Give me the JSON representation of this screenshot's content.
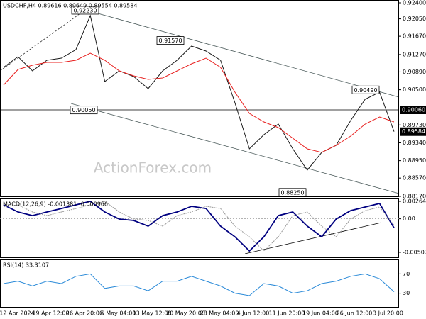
{
  "chart_data": [
    {
      "type": "line",
      "title": "USDCHF,H4  0.89616 0.89649 0.89554 0.89584",
      "watermark": "ActionForex.com",
      "ylim": [
        0.88154,
        0.92462
      ],
      "yticks": [
        {
          "value": 0.924,
          "label": "0.92400"
        },
        {
          "value": 0.9205,
          "label": "0.92050"
        },
        {
          "value": 0.9167,
          "label": "0.91670"
        },
        {
          "value": 0.9127,
          "label": "0.91270"
        },
        {
          "value": 0.9089,
          "label": "0.90890"
        },
        {
          "value": 0.905,
          "label": "0.90500"
        },
        {
          "value": 0.8973,
          "label": "0.89730"
        },
        {
          "value": 0.8934,
          "label": "0.89340"
        },
        {
          "value": 0.8895,
          "label": "0.88950"
        },
        {
          "value": 0.8857,
          "label": "0.88570"
        },
        {
          "value": 0.8817,
          "label": "0.88170"
        }
      ],
      "series": [
        {
          "name": "Close",
          "color": "#1a1a1a",
          "values": [
            0.9099,
            0.91222,
            0.90912,
            0.91145,
            0.91191,
            0.91377,
            0.92121,
            0.9068,
            0.90912,
            0.90788,
            0.90525,
            0.90912,
            0.91145,
            0.91455,
            0.91346,
            0.91145,
            0.90215,
            0.89208,
            0.89518,
            0.8975,
            0.89208,
            0.88743,
            0.8913,
            0.89285,
            0.89827,
            0.90292,
            0.90447,
            0.89584
          ]
        },
        {
          "name": "MA",
          "color": "#e8201f",
          "values": [
            0.90602,
            0.90943,
            0.91036,
            0.91098,
            0.91098,
            0.91145,
            0.913,
            0.91145,
            0.90912,
            0.90804,
            0.90726,
            0.90757,
            0.90912,
            0.91067,
            0.91191,
            0.9099,
            0.90447,
            0.89982,
            0.89797,
            0.89673,
            0.8944,
            0.89208,
            0.8913,
            0.89285,
            0.89487,
            0.8975,
            0.89905,
            0.89797
          ]
        }
      ],
      "level": {
        "value": 0.9006,
        "label": "0.90060"
      },
      "last": {
        "value": 0.89584,
        "label": "0.89584"
      },
      "annotations": [
        {
          "value": 0.9223,
          "label": "0.92230"
        },
        {
          "value": 0.9157,
          "label": "0.91570"
        },
        {
          "value": 0.9005,
          "label": "0.90050"
        },
        {
          "value": 0.9049,
          "label": "0.90490"
        },
        {
          "value": 0.8825,
          "label": "0.88250"
        }
      ]
    },
    {
      "type": "line",
      "title": "MACD(12,26,9) -0.001381 -0.000966",
      "ylim": [
        -0.00594,
        0.00307
      ],
      "yticks": [
        {
          "value": 0.00264,
          "label": "0.00264"
        },
        {
          "value": 0,
          "label": "0.00"
        },
        {
          "value": -0.005077,
          "label": "-0.005077"
        }
      ],
      "levels": [
        0
      ],
      "series": [
        {
          "name": "MACD",
          "color": "#000080",
          "values": [
            0.0021,
            0.00103,
            0.00049,
            0.00103,
            0.00156,
            0.0021,
            0.00264,
            0.00103,
            -4e-05,
            -0.00026,
            -0.00111,
            0.00049,
            0.00103,
            0.00189,
            0.00156,
            -0.00111,
            -0.00272,
            -0.00487,
            -0.00272,
            0.00049,
            0.00103,
            -0.00111,
            -0.00272,
            -4e-05,
            0.00124,
            0.00178,
            0.00232,
            -0.00138
          ]
        },
        {
          "name": "Signal",
          "color": "#9a9a9a",
          "values": [
            0.0018,
            0.0021,
            0.00103,
            0.00049,
            0.00103,
            0.00156,
            0.0021,
            0.00264,
            0.00103,
            -4e-05,
            -0.00026,
            -0.00111,
            0.00049,
            0.00103,
            0.00189,
            0.00156,
            -0.00111,
            -0.00272,
            -0.00487,
            -0.00272,
            0.00049,
            0.00103,
            -0.00111,
            -0.00272,
            -4e-05,
            0.00124,
            0.00178,
            -0.00097
          ]
        }
      ]
    },
    {
      "type": "line",
      "title": "RSI(14) 33.3107",
      "ylim": [
        0,
        100
      ],
      "yticks": [
        70,
        30
      ],
      "levels": [
        70,
        30
      ],
      "series": [
        {
          "name": "RSI",
          "color": "#2a8ad8",
          "values": [
            50,
            55,
            45,
            55,
            50,
            65,
            70,
            40,
            45,
            45,
            35,
            55,
            55,
            65,
            55,
            45,
            30,
            25,
            50,
            45,
            30,
            35,
            50,
            55,
            65,
            70,
            60,
            33
          ]
        }
      ],
      "x_labels": [
        "12 Apr 2024",
        "19 Apr 12:00",
        "26 Apr 20:00",
        "6 May 04:00",
        "13 May 12:00",
        "20 May 20:00",
        "28 May 04:00",
        "4 Jun 12:00",
        "11 Jun 20:00",
        "19 Jun 04:00",
        "26 Jun 12:00",
        "3 Jul 20:00"
      ]
    }
  ]
}
